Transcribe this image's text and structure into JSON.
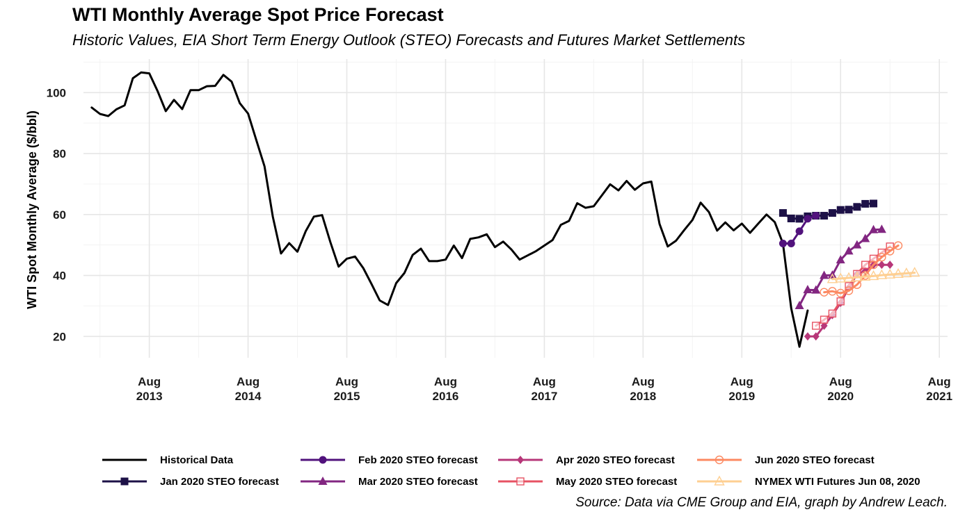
{
  "title": "WTI Monthly Average Spot Price Forecast",
  "subtitle": "Historic Values, EIA Short Term Energy Outlook (STEO) Forecasts and Futures Market Settlements",
  "caption": "Source: Data via CME Group and EIA, graph by Andrew Leach.",
  "chart_data": {
    "type": "line",
    "title": "WTI Monthly Average Spot Price Forecast",
    "xlabel": "",
    "ylabel": "WTI Spot Monthly Average ($/bbl)",
    "xlim": [
      "2012-12",
      "2021-09"
    ],
    "ylim": [
      13,
      111
    ],
    "y_ticks": [
      20,
      40,
      60,
      80,
      100
    ],
    "x_ticks": [
      {
        "month": "2013-08",
        "label_month": "Aug",
        "label_year": "2013"
      },
      {
        "month": "2014-08",
        "label_month": "Aug",
        "label_year": "2014"
      },
      {
        "month": "2015-08",
        "label_month": "Aug",
        "label_year": "2015"
      },
      {
        "month": "2016-08",
        "label_month": "Aug",
        "label_year": "2016"
      },
      {
        "month": "2017-08",
        "label_month": "Aug",
        "label_year": "2017"
      },
      {
        "month": "2018-08",
        "label_month": "Aug",
        "label_year": "2018"
      },
      {
        "month": "2019-08",
        "label_month": "Aug",
        "label_year": "2019"
      },
      {
        "month": "2020-08",
        "label_month": "Aug",
        "label_year": "2020"
      },
      {
        "month": "2021-08",
        "label_month": "Aug",
        "label_year": "2021"
      }
    ],
    "grid": true,
    "legend_position": "bottom",
    "series": [
      {
        "name": "Historical Data",
        "color": "#000000",
        "marker": "none",
        "start": "2013-01",
        "values": [
          95.1,
          93.0,
          92.3,
          94.5,
          95.8,
          104.7,
          106.6,
          106.3,
          100.5,
          93.9,
          97.6,
          94.6,
          100.8,
          100.8,
          102.1,
          102.2,
          105.8,
          103.6,
          96.5,
          93.1,
          84.4,
          75.8,
          59.3,
          47.2,
          50.6,
          47.8,
          54.5,
          59.3,
          59.8,
          50.9,
          42.9,
          45.5,
          46.2,
          42.4,
          37.2,
          31.8,
          30.3,
          37.5,
          40.8,
          46.7,
          48.8,
          44.7,
          44.7,
          45.2,
          49.8,
          45.7,
          52.0,
          52.5,
          53.5,
          49.3,
          51.1,
          48.5,
          45.2,
          46.6,
          48.0,
          49.8,
          51.6,
          56.6,
          57.9,
          63.7,
          62.2,
          62.7,
          66.3,
          69.9,
          67.9,
          71.0,
          68.1,
          70.2,
          70.8,
          56.9,
          49.5,
          51.4,
          54.9,
          58.2,
          63.9,
          60.8,
          54.7,
          57.4,
          54.8,
          57.0,
          54.0,
          57.0,
          60.0,
          57.5,
          50.5,
          29.2,
          16.6,
          28.5
        ]
      },
      {
        "name": "Jan 2020 STEO forecast",
        "color": "#1d1147",
        "marker": "square",
        "start": "2020-01",
        "values": [
          60.5,
          58.7,
          58.6,
          59.4,
          59.6,
          59.6,
          60.5,
          61.5,
          61.6,
          62.5,
          63.5,
          63.6
        ]
      },
      {
        "name": "Feb 2020 STEO forecast",
        "color": "#51127c",
        "marker": "circle",
        "start": "2020-01",
        "values": [
          50.5,
          50.5,
          54.5,
          58.6,
          59.6,
          null,
          null,
          null,
          null,
          null,
          null,
          null
        ]
      },
      {
        "name": "Mar 2020 STEO forecast",
        "color": "#822681",
        "marker": "triangle",
        "start": "2020-03",
        "values": [
          30.1,
          35.3,
          35.2,
          40.0,
          40.1,
          45.1,
          48.0,
          50.0,
          52.1,
          55.0,
          55.1
        ]
      },
      {
        "name": "Apr 2020 STEO forecast",
        "color": "#b73779",
        "marker": "diamond",
        "start": "2020-04",
        "values": [
          20.0,
          20.0,
          23.5,
          27.0,
          31.0,
          36.0,
          40.5,
          41.5,
          43.5,
          43.5,
          43.5
        ]
      },
      {
        "name": "May 2020 STEO forecast",
        "color": "#e75263",
        "marker": "open-square",
        "start": "2020-05",
        "values": [
          23.5,
          25.5,
          27.5,
          31.5,
          36.5,
          40.5,
          43.5,
          45.5,
          47.5,
          49.5
        ]
      },
      {
        "name": "Jun 2020 STEO forecast",
        "color": "#fc8961",
        "marker": "open-circle",
        "start": "2020-06",
        "values": [
          34.5,
          34.8,
          34.2,
          35.0,
          37.0,
          40.0,
          43.5,
          46.0,
          48.0,
          49.8
        ]
      },
      {
        "name": "NYMEX WTI Futures Jun 08, 2020",
        "color": "#fecf92",
        "marker": "open-triangle",
        "start": "2020-07",
        "values": [
          38.8,
          39.0,
          39.2,
          39.4,
          39.6,
          39.8,
          40.1,
          40.3,
          40.5,
          40.7,
          40.9
        ]
      }
    ]
  }
}
